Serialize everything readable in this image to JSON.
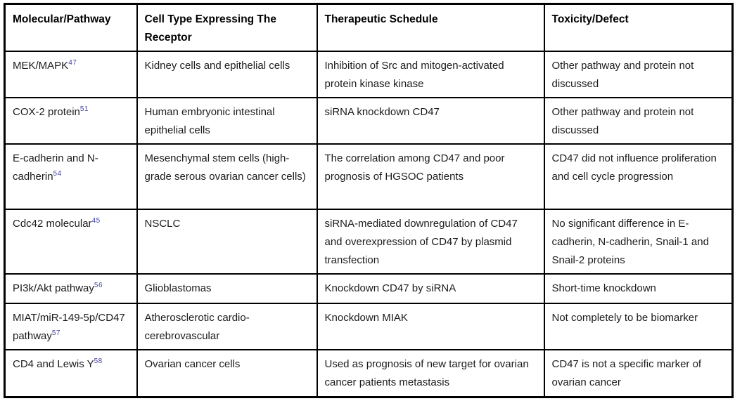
{
  "page": {
    "background": "#ffffff"
  },
  "colors": {
    "border": "#000000",
    "body_text": "#1c1c1e",
    "header_text": "#000000",
    "reference_superscript": "#4343a8"
  },
  "table": {
    "columns": [
      "Molecular/Pathway",
      "Cell Type Expressing The Receptor",
      "Therapeutic Schedule",
      "Toxicity/Defect"
    ],
    "rows": [
      {
        "molecular": "MEK/MAPK",
        "ref": "47",
        "cell_type": "Kidney cells and epithelial cells",
        "schedule": "Inhibition of Src and mitogen-activated protein kinase kinase",
        "toxicity": "Other pathway and protein not discussed"
      },
      {
        "molecular": "COX-2 protein",
        "ref": "51",
        "cell_type": "Human embryonic intestinal epithelial cells",
        "schedule": "siRNA knockdown CD47",
        "toxicity": "Other pathway and protein not discussed"
      },
      {
        "molecular": "E-cadherin and N-cadherin",
        "ref": "54",
        "cell_type": "Mesenchymal stem cells (high-grade serous ovarian cancer cells)",
        "schedule": "The correlation among CD47 and poor prognosis of HGSOC patients",
        "toxicity": "CD47 did not influence proliferation and cell cycle progression"
      },
      {
        "molecular": "Cdc42 molecular",
        "ref": "45",
        "cell_type": "NSCLC",
        "schedule": "siRNA-mediated downregulation of CD47 and overexpression of CD47 by plasmid transfection",
        "toxicity": "No significant difference in E-cadherin, N-cadherin, Snail-1 and Snail-2 proteins"
      },
      {
        "molecular": "PI3k/Akt pathway",
        "ref": "56",
        "cell_type": "Glioblastomas",
        "schedule": "Knockdown CD47 by siRNA",
        "toxicity": "Short-time knockdown"
      },
      {
        "molecular": "MIAT/miR-149-5p/CD47 pathway",
        "ref": "57",
        "cell_type": "Atherosclerotic cardio-cerebrovascular",
        "schedule": "Knockdown MIAK",
        "toxicity": "Not completely to be biomarker"
      },
      {
        "molecular": "CD4 and Lewis Y",
        "ref": "58",
        "cell_type": "Ovarian cancer cells",
        "schedule": "Used as prognosis of new target for ovarian cancer patients metastasis",
        "toxicity": "CD47 is not a specific marker of ovarian cancer"
      }
    ]
  }
}
